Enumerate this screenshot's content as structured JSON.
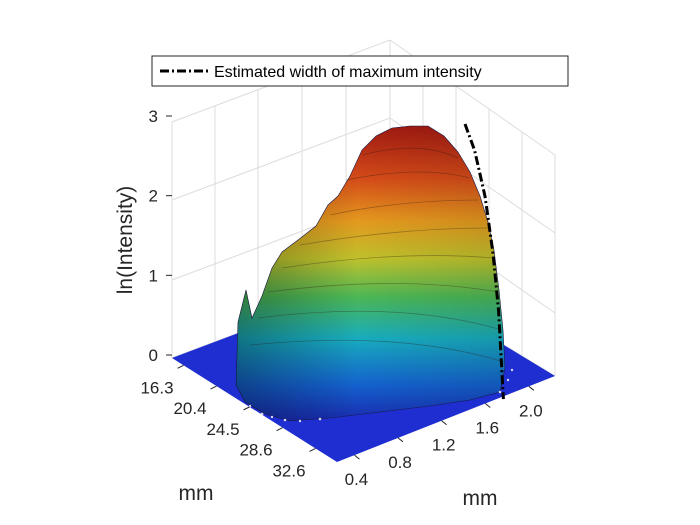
{
  "chart_data": {
    "type": "surface3d",
    "title": "",
    "zlabel": "ln(Intensity)",
    "xlabel": "mm",
    "ylabel": "mm",
    "zticks": [
      "0",
      "1",
      "2",
      "3"
    ],
    "zlim": [
      0,
      3
    ],
    "xticks": [
      "16.3",
      "20.4",
      "24.5",
      "28.6",
      "32.6"
    ],
    "yticks": [
      "0.4",
      "0.8",
      "1.2",
      "1.6",
      "2.0"
    ],
    "grid": true,
    "legend": {
      "placement": "top",
      "entries": [
        {
          "name": "Estimated width of maximum intensity",
          "style": "dash-dot",
          "color": "#000000"
        }
      ]
    },
    "colormap": "jet",
    "peak": {
      "x_mm": 24.5,
      "y_mm": 1.2,
      "z": 2.9
    },
    "ridge_line": [
      {
        "y_mm": 1.2,
        "z": 2.9
      },
      {
        "y_mm": 1.32,
        "z": 2.6
      },
      {
        "y_mm": 1.45,
        "z": 2.1
      },
      {
        "y_mm": 1.55,
        "z": 1.5
      },
      {
        "y_mm": 1.62,
        "z": 0.9
      },
      {
        "y_mm": 1.66,
        "z": 0.3
      },
      {
        "y_mm": 1.68,
        "z": 0.0
      }
    ]
  }
}
